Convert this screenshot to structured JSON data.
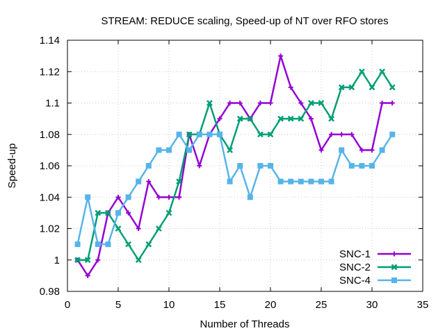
{
  "chart_data": {
    "type": "line",
    "title": "STREAM: REDUCE scaling, Speed-up of NT over RFO stores",
    "xlabel": "Number of Threads",
    "ylabel": "Speed-up",
    "xlim": [
      0,
      35
    ],
    "ylim": [
      0.98,
      1.14
    ],
    "xticks": [
      "0",
      "5",
      "10",
      "15",
      "20",
      "25",
      "30",
      "35"
    ],
    "xtick_values": [
      0,
      5,
      10,
      15,
      20,
      25,
      30,
      35
    ],
    "yticks": [
      "0.98",
      "1",
      "1.02",
      "1.04",
      "1.06",
      "1.08",
      "1.1",
      "1.12",
      "1.14"
    ],
    "ytick_values": [
      0.98,
      1.0,
      1.02,
      1.04,
      1.06,
      1.08,
      1.1,
      1.12,
      1.14
    ],
    "grid": true,
    "legend_position": "bottom-right",
    "x": [
      1,
      2,
      3,
      4,
      5,
      6,
      7,
      8,
      9,
      10,
      11,
      12,
      13,
      14,
      15,
      16,
      17,
      18,
      19,
      20,
      21,
      22,
      23,
      24,
      25,
      26,
      27,
      28,
      29,
      30,
      31,
      32
    ],
    "series": [
      {
        "name": "SNC-1",
        "color": "#9400d3",
        "marker": "plus",
        "values": [
          1.0,
          0.99,
          1.0,
          1.03,
          1.04,
          1.03,
          1.02,
          1.05,
          1.04,
          1.04,
          1.04,
          1.08,
          1.06,
          1.08,
          1.09,
          1.1,
          1.1,
          1.09,
          1.1,
          1.1,
          1.13,
          1.11,
          1.1,
          1.09,
          1.07,
          1.08,
          1.08,
          1.08,
          1.07,
          1.07,
          1.1,
          1.1
        ]
      },
      {
        "name": "SNC-2",
        "color": "#009e73",
        "marker": "cross",
        "values": [
          1.0,
          1.0,
          1.03,
          1.03,
          1.02,
          1.01,
          1.0,
          1.01,
          1.02,
          1.03,
          1.05,
          1.08,
          1.08,
          1.1,
          1.08,
          1.07,
          1.09,
          1.09,
          1.08,
          1.08,
          1.09,
          1.09,
          1.09,
          1.1,
          1.1,
          1.09,
          1.11,
          1.11,
          1.12,
          1.11,
          1.12,
          1.11
        ]
      },
      {
        "name": "SNC-4",
        "color": "#56b4e9",
        "marker": "square-cross",
        "values": [
          1.01,
          1.04,
          1.01,
          1.01,
          1.03,
          1.04,
          1.05,
          1.06,
          1.07,
          1.07,
          1.08,
          1.07,
          1.08,
          1.08,
          1.08,
          1.05,
          1.06,
          1.04,
          1.06,
          1.06,
          1.05,
          1.05,
          1.05,
          1.05,
          1.05,
          1.05,
          1.07,
          1.06,
          1.06,
          1.06,
          1.07,
          1.08
        ]
      }
    ]
  }
}
